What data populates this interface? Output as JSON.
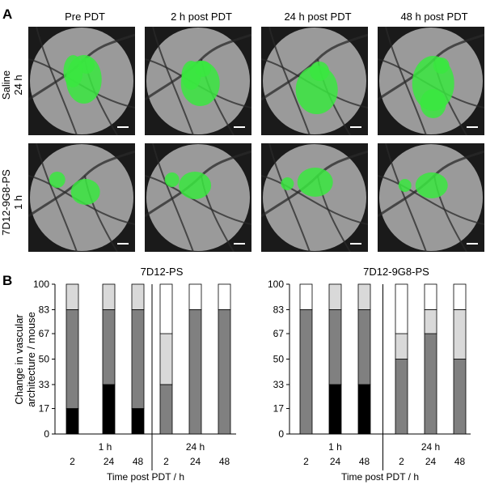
{
  "panel_a": {
    "letter": "A",
    "columns": [
      "Pre PDT",
      "2 h post PDT",
      "24 h post PDT",
      "48 h post PDT"
    ],
    "rows": [
      {
        "label_line1": "Saline",
        "label_line2": "24 h"
      },
      {
        "label_line1": "7D12-9G8-PS",
        "label_line2": "1 h"
      }
    ],
    "colors": {
      "fluorescence": "#39e83f",
      "vessel": "#2a2a2a",
      "tissue": "#9a9a9a"
    }
  },
  "panel_b": {
    "letter": "B",
    "ylabel_line1": "Change in vascular",
    "ylabel_line2": "architecture / mouse",
    "xlabel": "Time post PDT / h",
    "group_labels": [
      "1 h",
      "24 h"
    ],
    "colors": {
      "black": "#000000",
      "dark": "#808080",
      "light": "#d9d9d9",
      "white": "#ffffff"
    }
  },
  "chart_data": [
    {
      "type": "bar",
      "title": "7D12-PS",
      "stacked": true,
      "ylim": [
        0,
        100
      ],
      "yticks": [
        0,
        17,
        33,
        50,
        67,
        83,
        100
      ],
      "categories": [
        "2",
        "24",
        "48",
        "2",
        "24",
        "48"
      ],
      "groups": [
        "1 h",
        "1 h",
        "1 h",
        "24 h",
        "24 h",
        "24 h"
      ],
      "series": [
        {
          "color": "#000000",
          "values": [
            17,
            33,
            17,
            0,
            0,
            0
          ]
        },
        {
          "color": "#808080",
          "values": [
            66,
            50,
            66,
            33,
            83,
            83
          ]
        },
        {
          "color": "#d9d9d9",
          "values": [
            17,
            17,
            17,
            34,
            0,
            0
          ]
        },
        {
          "color": "#ffffff",
          "values": [
            0,
            0,
            0,
            33,
            17,
            17
          ]
        }
      ]
    },
    {
      "type": "bar",
      "title": "7D12-9G8-PS",
      "stacked": true,
      "ylim": [
        0,
        100
      ],
      "yticks": [
        0,
        17,
        33,
        50,
        67,
        83,
        100
      ],
      "categories": [
        "2",
        "24",
        "48",
        "2",
        "24",
        "48"
      ],
      "groups": [
        "1 h",
        "1 h",
        "1 h",
        "24 h",
        "24 h",
        "24 h"
      ],
      "series": [
        {
          "color": "#000000",
          "values": [
            0,
            33,
            33,
            0,
            0,
            0
          ]
        },
        {
          "color": "#808080",
          "values": [
            83,
            50,
            50,
            50,
            67,
            50
          ]
        },
        {
          "color": "#d9d9d9",
          "values": [
            0,
            17,
            17,
            17,
            16,
            33
          ]
        },
        {
          "color": "#ffffff",
          "values": [
            17,
            0,
            0,
            33,
            17,
            17
          ]
        }
      ]
    }
  ]
}
